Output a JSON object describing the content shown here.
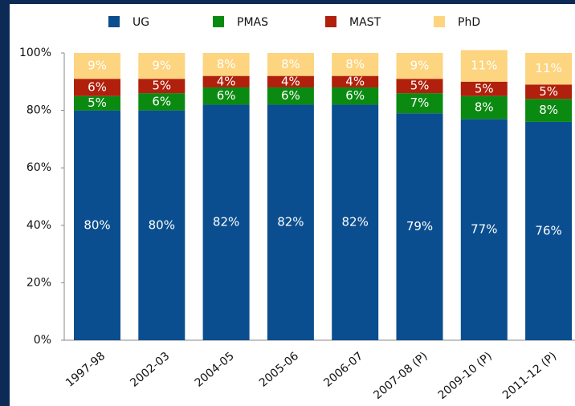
{
  "chart_data": {
    "type": "bar",
    "stacked": true,
    "categories": [
      "1997-98",
      "2002-03",
      "2004-05",
      "2005-06",
      "2006-07",
      "2007-08 (P)",
      "2009-10 (P)",
      "2011-12 (P)"
    ],
    "series": [
      {
        "name": "UG",
        "color": "#0a4e8f",
        "values": [
          80,
          80,
          82,
          82,
          82,
          79,
          77,
          76
        ],
        "value_labels": [
          "80%",
          "80%",
          "82%",
          "82%",
          "82%",
          "79%",
          "77%",
          "76%"
        ]
      },
      {
        "name": "PMAS",
        "color": "#0b8a12",
        "values": [
          5,
          6,
          6,
          6,
          6,
          7,
          8,
          8
        ],
        "value_labels": [
          "5%",
          "6%",
          "6%",
          "6%",
          "6%",
          "7%",
          "8%",
          "8%"
        ]
      },
      {
        "name": "MAST",
        "color": "#b0200c",
        "values": [
          6,
          5,
          4,
          4,
          4,
          5,
          5,
          5
        ],
        "value_labels": [
          "6%",
          "5%",
          "4%",
          "4%",
          "4%",
          "5%",
          "5%",
          "5%"
        ]
      },
      {
        "name": "PhD",
        "color": "#fdd47f",
        "values": [
          9,
          9,
          8,
          8,
          8,
          9,
          11,
          11
        ],
        "value_labels": [
          "9%",
          "9%",
          "8%",
          "8%",
          "8%",
          "9%",
          "11%",
          "11%"
        ]
      }
    ],
    "ylim": [
      0,
      100
    ],
    "yticks": [
      {
        "value": 0,
        "label": "0%"
      },
      {
        "value": 20,
        "label": "20%"
      },
      {
        "value": 40,
        "label": "40%"
      },
      {
        "value": 60,
        "label": "60%"
      },
      {
        "value": 80,
        "label": "80%"
      },
      {
        "value": 100,
        "label": "100%"
      }
    ],
    "legend": "top"
  }
}
